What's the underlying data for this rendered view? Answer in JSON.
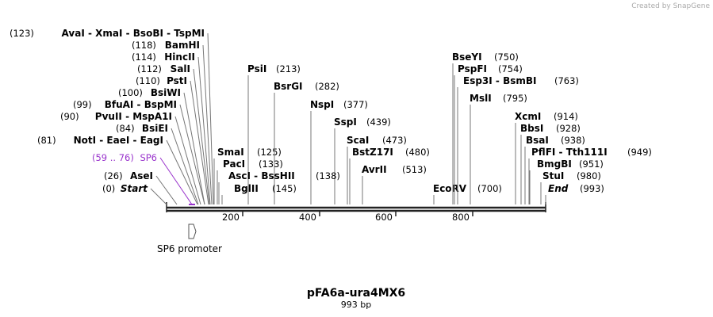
{
  "watermark": "Created by SnapGene",
  "left_labels": [
    {
      "pos": "(123)",
      "name": "AvaI  - XmaI  - BsoBI  - TspMI"
    },
    {
      "pos": "(118)",
      "name": "BamHI"
    },
    {
      "pos": "(114)",
      "name": "HincII"
    },
    {
      "pos": "(112)",
      "name": "SalI"
    },
    {
      "pos": "(110)",
      "name": "PstI"
    },
    {
      "pos": "(100)",
      "name": "BsiWI"
    },
    {
      "pos": "(99)",
      "name": "BfuAI  - BspMI"
    },
    {
      "pos": "(90)",
      "name": "PvuII  - MspA1I"
    },
    {
      "pos": "(84)",
      "name": "BsiEI"
    },
    {
      "pos": "(81)",
      "name": "NotI  - EaeI  - EagI"
    },
    {
      "pos": "(59 .. 76)",
      "name": "SP6"
    },
    {
      "pos": "(26)",
      "name": "AseI"
    },
    {
      "pos": "(0)",
      "name": "Start"
    }
  ],
  "right_labels": [
    {
      "name": "SmaI",
      "pos": "(125)"
    },
    {
      "name": "PsiI",
      "pos": "(213)"
    },
    {
      "name": "BsrGI",
      "pos": "(282)"
    },
    {
      "name": "NspI",
      "pos": "(377)"
    },
    {
      "name": "SspI",
      "pos": "(439)"
    },
    {
      "name": "ScaI",
      "pos": "(473)"
    },
    {
      "name": "BstZ17I",
      "pos": "(480)"
    },
    {
      "name": "AvrII",
      "pos": "(513)"
    },
    {
      "name": "PacI",
      "pos": "(133)"
    },
    {
      "name": "AscI  - BssHII",
      "pos": "(138)"
    },
    {
      "name": "BglII",
      "pos": "(145)"
    },
    {
      "name": "EcoRV",
      "pos": "(700)"
    },
    {
      "name": "BseYI",
      "pos": "(750)"
    },
    {
      "name": "PspFI",
      "pos": "(754)"
    },
    {
      "name": "Esp3I  - BsmBI",
      "pos": "(763)"
    },
    {
      "name": "MslI",
      "pos": "(795)"
    },
    {
      "name": "XcmI",
      "pos": "(914)"
    },
    {
      "name": "BbsI",
      "pos": "(928)"
    },
    {
      "name": "BsaI",
      "pos": "(938)"
    },
    {
      "name": "PflFI  - Tth111I",
      "pos": "(949)"
    },
    {
      "name": "BmgBI",
      "pos": "(951)"
    },
    {
      "name": "StuI",
      "pos": "(980)"
    },
    {
      "name": "End",
      "pos": "(993)"
    }
  ],
  "ruler": [
    "200",
    "400",
    "600",
    "800"
  ],
  "feature": "SP6 promoter",
  "title": "pFA6a-ura4MX6",
  "subtitle": "993 bp"
}
